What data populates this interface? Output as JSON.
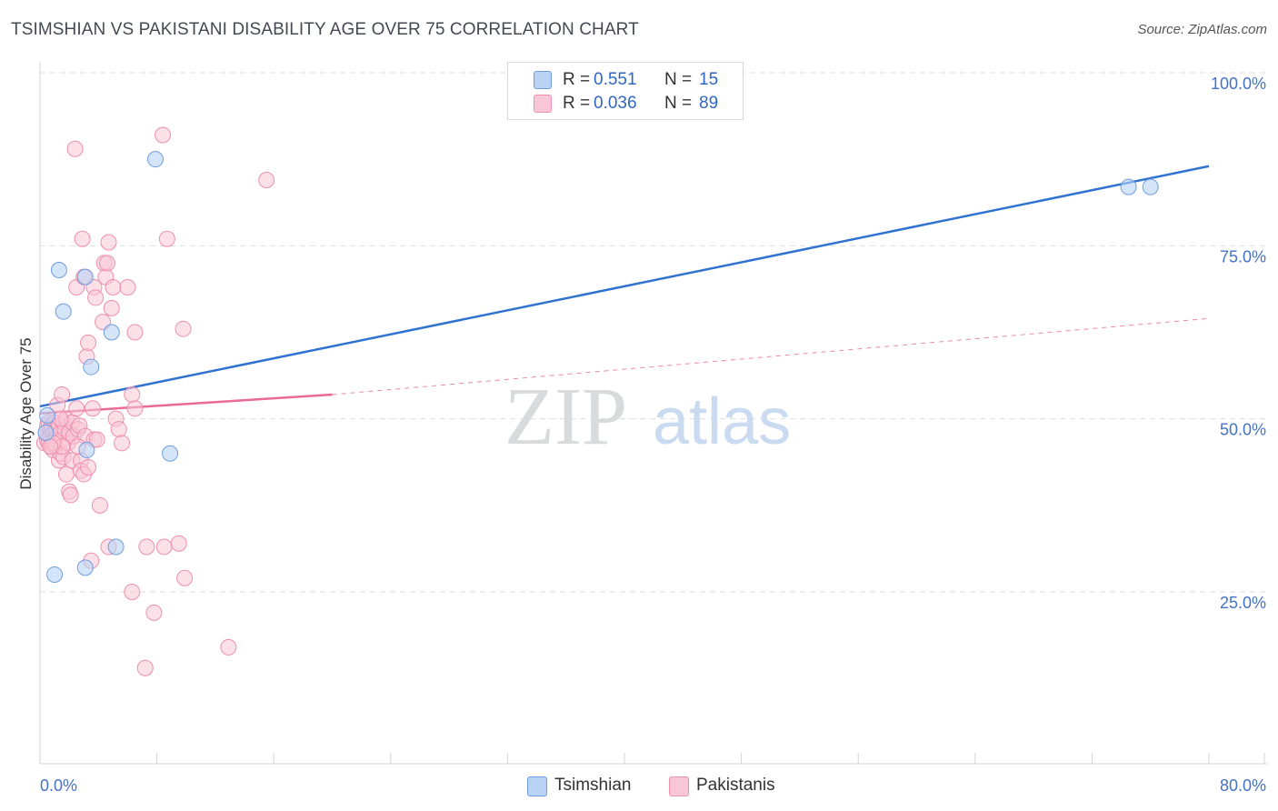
{
  "header": {
    "title": "TSIMSHIAN VS PAKISTANI DISABILITY AGE OVER 75 CORRELATION CHART",
    "source": "Source: ZipAtlas.com"
  },
  "watermark": {
    "zip": "ZIP",
    "atlas": "atlas"
  },
  "legend": {
    "r_label": "R =",
    "n_label": "N =",
    "items": [
      {
        "name": "Tsimshian",
        "r": "0.551",
        "n": "15"
      },
      {
        "name": "Pakistanis",
        "r": "0.036",
        "n": "89"
      }
    ]
  },
  "colors": {
    "tsimshian_fill": "#b9d3f5",
    "tsimshian_stroke": "#6f9de0",
    "tsimshian_line": "#2f72d0",
    "pakistani_fill": "#f8c6d6",
    "pakistani_stroke": "#ee8fae",
    "pakistani_line": "#e86a95",
    "axis_text": "#4472c4",
    "grid": "#dddddd"
  },
  "chart_data": {
    "type": "scatter",
    "title": "TSIMSHIAN VS PAKISTANI DISABILITY AGE OVER 75 CORRELATION CHART",
    "xlabel": "",
    "ylabel": "Disability Age Over 75",
    "xlim": [
      0,
      80
    ],
    "ylim": [
      0,
      105
    ],
    "x_tick_labels": [
      "0.0%",
      "80.0%"
    ],
    "y_ticks": [
      25,
      50,
      75,
      100
    ],
    "y_tick_labels": [
      "25.0%",
      "50.0%",
      "75.0%",
      "100.0%"
    ],
    "grid": true,
    "legend_position": "top-center",
    "series": [
      {
        "name": "Tsimshian",
        "r": 0.551,
        "n": 15,
        "trend": {
          "x": [
            0,
            80
          ],
          "y": [
            51.8,
            86.5
          ],
          "style": "solid"
        },
        "points": [
          [
            0.5,
            50.5
          ],
          [
            1.0,
            27.5
          ],
          [
            1.3,
            71.5
          ],
          [
            1.6,
            65.5
          ],
          [
            3.1,
            70.5
          ],
          [
            3.1,
            28.5
          ],
          [
            3.2,
            45.5
          ],
          [
            3.5,
            57.5
          ],
          [
            4.9,
            62.5
          ],
          [
            5.2,
            31.5
          ],
          [
            7.9,
            87.5
          ],
          [
            8.9,
            45.0
          ],
          [
            74.5,
            83.5
          ],
          [
            76.0,
            83.5
          ],
          [
            0.4,
            48.0
          ]
        ]
      },
      {
        "name": "Pakistanis",
        "r": 0.036,
        "n": 89,
        "trend": {
          "x": [
            0,
            20,
            80
          ],
          "y": [
            50.8,
            53.5,
            64.5
          ],
          "style": "solid-then-dashed",
          "solid_until": 20
        },
        "points": [
          [
            0.3,
            46.5
          ],
          [
            0.4,
            48.0
          ],
          [
            0.5,
            49.0
          ],
          [
            0.5,
            47.0
          ],
          [
            0.6,
            46.5
          ],
          [
            0.6,
            49.5
          ],
          [
            0.7,
            48.5
          ],
          [
            0.7,
            47.5
          ],
          [
            0.8,
            46.0
          ],
          [
            0.8,
            49.0
          ],
          [
            0.9,
            48.0
          ],
          [
            0.9,
            45.5
          ],
          [
            1.0,
            47.0
          ],
          [
            1.0,
            49.5
          ],
          [
            1.1,
            48.5
          ],
          [
            1.1,
            46.0
          ],
          [
            1.2,
            52.0
          ],
          [
            1.2,
            47.5
          ],
          [
            1.3,
            44.0
          ],
          [
            1.3,
            49.0
          ],
          [
            1.4,
            48.0
          ],
          [
            1.4,
            45.0
          ],
          [
            1.5,
            53.5
          ],
          [
            1.5,
            47.0
          ],
          [
            1.6,
            49.5
          ],
          [
            1.6,
            44.5
          ],
          [
            1.7,
            48.5
          ],
          [
            1.8,
            42.0
          ],
          [
            1.8,
            50.0
          ],
          [
            1.9,
            46.5
          ],
          [
            2.0,
            39.5
          ],
          [
            2.0,
            48.0
          ],
          [
            2.1,
            39.0
          ],
          [
            2.2,
            44.0
          ],
          [
            2.2,
            49.5
          ],
          [
            2.3,
            47.5
          ],
          [
            2.4,
            89.0
          ],
          [
            2.5,
            51.5
          ],
          [
            2.5,
            69.0
          ],
          [
            2.6,
            48.5
          ],
          [
            2.7,
            49.0
          ],
          [
            2.8,
            44.0
          ],
          [
            2.8,
            42.5
          ],
          [
            2.9,
            76.0
          ],
          [
            3.0,
            70.5
          ],
          [
            3.0,
            42.0
          ],
          [
            3.1,
            47.5
          ],
          [
            3.2,
            59.0
          ],
          [
            3.3,
            61.0
          ],
          [
            3.3,
            43.0
          ],
          [
            3.5,
            29.5
          ],
          [
            3.6,
            51.5
          ],
          [
            3.7,
            47.0
          ],
          [
            3.7,
            69.0
          ],
          [
            3.8,
            67.5
          ],
          [
            3.9,
            47.0
          ],
          [
            4.1,
            37.5
          ],
          [
            4.3,
            64.0
          ],
          [
            4.4,
            72.5
          ],
          [
            4.5,
            70.5
          ],
          [
            4.6,
            72.5
          ],
          [
            4.7,
            31.5
          ],
          [
            4.7,
            75.5
          ],
          [
            4.9,
            66.0
          ],
          [
            5.0,
            69.0
          ],
          [
            5.2,
            50.0
          ],
          [
            5.4,
            48.5
          ],
          [
            5.6,
            46.5
          ],
          [
            6.0,
            69.0
          ],
          [
            6.3,
            25.0
          ],
          [
            6.3,
            53.5
          ],
          [
            6.5,
            51.5
          ],
          [
            6.5,
            62.5
          ],
          [
            7.3,
            31.5
          ],
          [
            7.2,
            14.0
          ],
          [
            7.8,
            22.0
          ],
          [
            8.4,
            91.0
          ],
          [
            8.5,
            31.5
          ],
          [
            8.7,
            76.0
          ],
          [
            9.5,
            32.0
          ],
          [
            9.8,
            63.0
          ],
          [
            9.9,
            27.0
          ],
          [
            12.9,
            17.0
          ],
          [
            15.5,
            84.5
          ],
          [
            1.5,
            46.0
          ],
          [
            0.9,
            46.5
          ],
          [
            1.4,
            50.0
          ],
          [
            2.6,
            46.0
          ],
          [
            0.7,
            46.0
          ]
        ]
      }
    ]
  }
}
